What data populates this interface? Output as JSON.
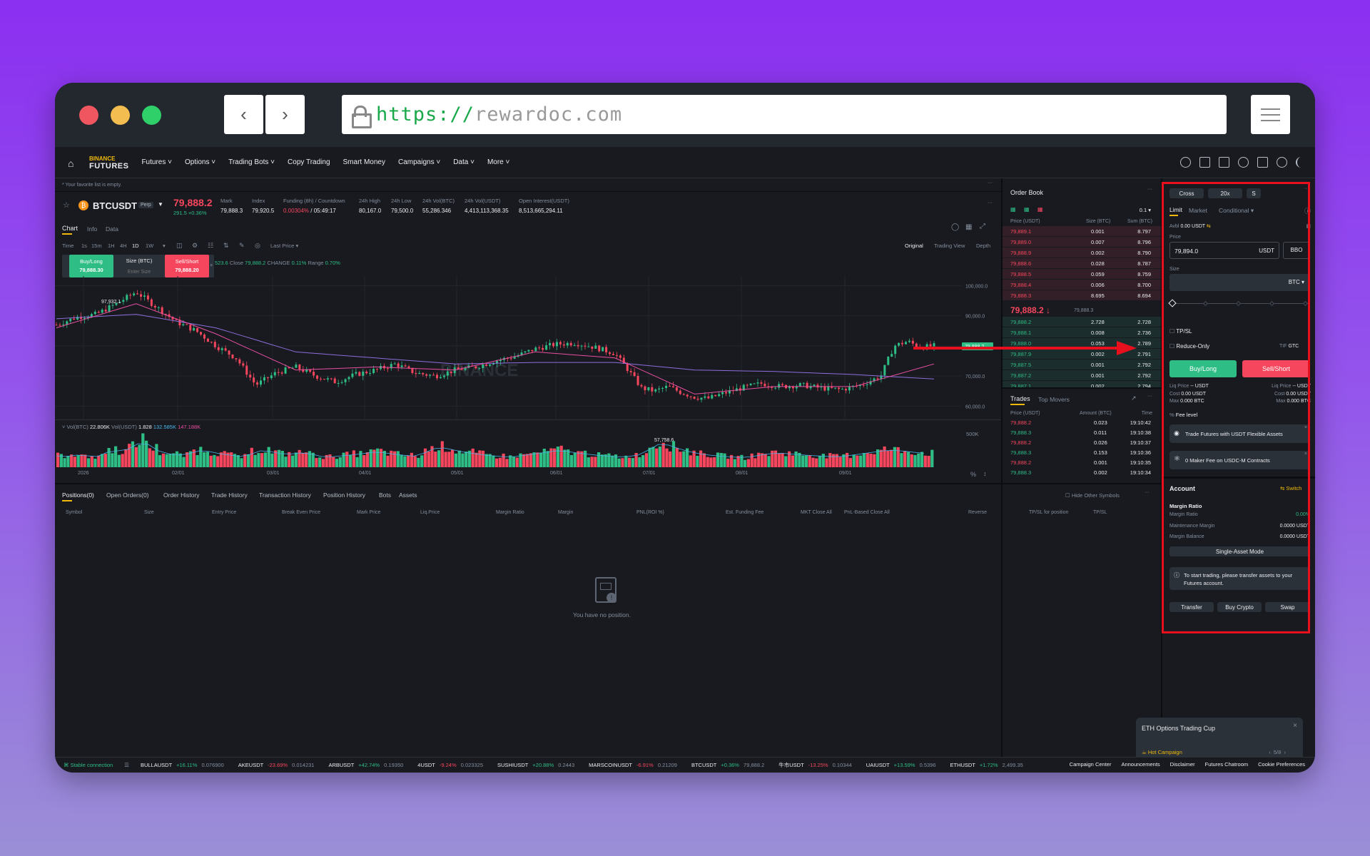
{
  "browser": {
    "url_scheme": "https://",
    "url_host": "rewardoc.com",
    "back_icon": "chevron-left-icon",
    "forward_icon": "chevron-right-icon",
    "menu_icon": "sliders-icon"
  },
  "nav": {
    "logo_top": "BINANCE",
    "logo_bottom": "FUTURES",
    "items": [
      "Futures",
      "Options",
      "Trading Bots",
      "Copy Trading",
      "Smart Money",
      "Campaigns",
      "Data",
      "More"
    ]
  },
  "favorites": {
    "empty_text": "* Your favorite list is empty."
  },
  "ticker_header": {
    "symbol": "BTCUSDT",
    "badge": "Perp",
    "price": "79,888.2",
    "change": "291.5 +0.36%",
    "stats": [
      {
        "label": "Mark",
        "value": "79,888.3"
      },
      {
        "label": "Index",
        "value": "79,920.5"
      },
      {
        "label": "Funding (8h) / Countdown",
        "value": "0.00304%",
        "value2": "/ 05:49:17"
      },
      {
        "label": "24h High",
        "value": "80,167.0"
      },
      {
        "label": "24h Low",
        "value": "79,500.0"
      },
      {
        "label": "24h Vol(BTC)",
        "value": "55,286.346"
      },
      {
        "label": "24h Vol(USDT)",
        "value": "4,413,113,368.35"
      },
      {
        "label": "Open Interest(USDT)",
        "value": "8,513,665,294.11"
      }
    ]
  },
  "chart_tabs": [
    "Chart",
    "Info",
    "Data"
  ],
  "chart_toolbar": {
    "intervals": [
      "Time",
      "1s",
      "15m",
      "1H",
      "4H",
      "1D",
      "1W"
    ],
    "active_interval": "1D",
    "last_price": "Last Price",
    "views": [
      "Original",
      "Trading View",
      "Depth"
    ]
  },
  "quick_trade": {
    "buy_label": "Buy/Long",
    "buy_price": "79,888.30",
    "size_label": "Size (BTC)",
    "size_placeholder": "Enter Size",
    "sell_label": "Sell/Short",
    "sell_price": "79,888.20"
  },
  "chart_info": {
    "ohlc_tail": "523.6",
    "close_label": "Close",
    "close_value": "79,888.2",
    "change_label": "CHANGE",
    "change_value": "0.11%",
    "range_label": "Range",
    "range_value": "0.70%",
    "watermark": "BINANCE",
    "high_marker": "97,932.1",
    "low_marker": "57,758.6",
    "last_price_tag": "79,888.2",
    "vol_label": "Vol(BTC)",
    "vol_btc": "22.806K",
    "vol_usdt_label": "Vol(USDT)",
    "vol_usdt": "1.828",
    "vol_ma1": "132.585K",
    "vol_ma2": "147.188K"
  },
  "chart_data": {
    "type": "line",
    "x_ticks": [
      "2026",
      "02/01",
      "03/01",
      "04/01",
      "05/01",
      "06/01",
      "07/01",
      "08/01",
      "09/01"
    ],
    "y_ticks": [
      100000,
      90000,
      80000,
      70000,
      60000
    ],
    "y_tick_labels": [
      "100,000.0",
      "90,000.0",
      "80,000.0",
      "70,000.0",
      "60,000.0"
    ],
    "ylim": [
      57000,
      102000
    ],
    "vol_axis_label": "500K",
    "price_series": [
      [
        0,
        87000
      ],
      [
        3,
        89500
      ],
      [
        6,
        90500
      ],
      [
        9,
        94000
      ],
      [
        12,
        97932
      ],
      [
        15,
        93000
      ],
      [
        18,
        88000
      ],
      [
        21,
        85000
      ],
      [
        24,
        80000
      ],
      [
        27,
        76000
      ],
      [
        30,
        67000
      ],
      [
        33,
        71000
      ],
      [
        36,
        73000
      ],
      [
        39,
        70000
      ],
      [
        42,
        68000
      ],
      [
        45,
        70500
      ],
      [
        48,
        72000
      ],
      [
        51,
        74000
      ],
      [
        54,
        71000
      ],
      [
        57,
        70000
      ],
      [
        60,
        72000
      ],
      [
        63,
        73000
      ],
      [
        66,
        75000
      ],
      [
        69,
        76500
      ],
      [
        72,
        79000
      ],
      [
        75,
        80500
      ],
      [
        78,
        81000
      ],
      [
        81,
        79500
      ],
      [
        84,
        77500
      ],
      [
        86,
        72000
      ],
      [
        88,
        66000
      ],
      [
        90,
        65000
      ],
      [
        92,
        66500
      ],
      [
        94,
        64500
      ],
      [
        96,
        63000
      ],
      [
        98,
        62500
      ],
      [
        100,
        64000
      ],
      [
        103,
        66000
      ],
      [
        106,
        67500
      ],
      [
        109,
        66500
      ],
      [
        112,
        67000
      ],
      [
        115,
        66000
      ],
      [
        118,
        65500
      ],
      [
        121,
        67000
      ],
      [
        124,
        70000
      ],
      [
        126,
        80000
      ],
      [
        128,
        81500
      ],
      [
        130,
        79500
      ],
      [
        132,
        80000
      ]
    ],
    "ma_series": [
      [
        0,
        89000
      ],
      [
        12,
        90500
      ],
      [
        24,
        86000
      ],
      [
        36,
        78000
      ],
      [
        48,
        76000
      ],
      [
        60,
        74000
      ],
      [
        72,
        74500
      ],
      [
        84,
        74500
      ],
      [
        96,
        72000
      ],
      [
        108,
        71500
      ],
      [
        120,
        70500
      ],
      [
        132,
        69000
      ]
    ],
    "ema_series": [
      [
        0,
        86000
      ],
      [
        12,
        94000
      ],
      [
        24,
        84000
      ],
      [
        36,
        72000
      ],
      [
        48,
        73000
      ],
      [
        60,
        72000
      ],
      [
        72,
        78000
      ],
      [
        84,
        76000
      ],
      [
        96,
        64000
      ],
      [
        108,
        66500
      ],
      [
        120,
        66500
      ],
      [
        132,
        74000
      ]
    ],
    "volume": [
      40,
      35,
      50,
      30,
      45,
      60,
      55,
      70,
      95,
      65,
      50,
      45,
      40,
      55,
      60,
      50,
      45,
      40,
      35,
      55,
      60,
      50,
      45,
      48,
      52,
      40,
      35,
      38,
      42,
      45,
      50,
      55,
      48,
      44,
      40,
      38,
      60,
      70,
      65,
      55,
      50,
      45,
      40,
      38,
      35,
      40,
      45,
      50,
      55,
      60,
      52,
      48,
      44,
      40,
      38,
      35,
      40,
      45,
      75,
      85,
      70,
      60,
      50,
      45,
      40,
      38,
      35,
      33,
      40,
      45,
      50,
      48,
      45,
      42,
      40,
      38,
      36,
      40,
      45,
      50,
      55,
      60,
      58,
      55,
      50,
      48
    ]
  },
  "order_book": {
    "title": "Order Book",
    "precision": "0.1",
    "headers": [
      "Price (USDT)",
      "Size (BTC)",
      "Sum (BTC)"
    ],
    "asks": [
      [
        "79,889.1",
        "0.001",
        "8.797"
      ],
      [
        "79,889.0",
        "0.007",
        "8.796"
      ],
      [
        "79,888.9",
        "0.002",
        "8.790"
      ],
      [
        "79,888.6",
        "0.028",
        "8.787"
      ],
      [
        "79,888.5",
        "0.059",
        "8.759"
      ],
      [
        "79,888.4",
        "0.006",
        "8.700"
      ],
      [
        "79,888.3",
        "8.695",
        "8.694"
      ]
    ],
    "mid_price": "79,888.2",
    "mid_mark": "79,888.3",
    "bids": [
      [
        "79,888.2",
        "2.728",
        "2.728"
      ],
      [
        "79,888.1",
        "0.008",
        "2.736"
      ],
      [
        "79,888.0",
        "0.053",
        "2.789"
      ],
      [
        "79,887.9",
        "0.002",
        "2.791"
      ],
      [
        "79,887.5",
        "0.001",
        "2.792"
      ],
      [
        "79,887.2",
        "0.001",
        "2.792"
      ],
      [
        "79,887.1",
        "0.002",
        "2.794"
      ]
    ]
  },
  "trades": {
    "tabs": [
      "Trades",
      "Top Movers"
    ],
    "headers": [
      "Price (USDT)",
      "Amount (BTC)",
      "Time"
    ],
    "rows": [
      [
        "79,888.2",
        "0.023",
        "19:10:42",
        "r"
      ],
      [
        "79,888.3",
        "0.011",
        "19:10:38",
        "g"
      ],
      [
        "79,888.2",
        "0.026",
        "19:10:37",
        "r"
      ],
      [
        "79,888.3",
        "0.153",
        "19:10:36",
        "g"
      ],
      [
        "79,888.2",
        "0.001",
        "19:10:35",
        "r"
      ],
      [
        "79,888.3",
        "0.002",
        "19:10:34",
        "g"
      ]
    ]
  },
  "positions": {
    "tabs": [
      "Positions(0)",
      "Open Orders(0)",
      "Order History",
      "Trade History",
      "Transaction History",
      "Position History",
      "Bots",
      "Assets"
    ],
    "hide_other": "Hide Other Symbols",
    "columns": [
      "Symbol",
      "Size",
      "Entry Price",
      "Break Even Price",
      "Mark Price",
      "Liq.Price",
      "Margin Ratio",
      "Margin",
      "PNL(ROI %)",
      "Est. Funding Fee",
      "MKT Close All",
      "PnL-Based Close All",
      "Reverse",
      "TP/SL for position",
      "TP/SL"
    ],
    "empty_text": "You have no position."
  },
  "order_form": {
    "margin_mode": "Cross",
    "leverage": "20x",
    "asset_mode": "S",
    "order_types": [
      "Limit",
      "Market",
      "Conditional"
    ],
    "avbl_label": "Avbl",
    "avbl_value": "0.00 USDT",
    "price_label": "Price",
    "price_value": "79,894.0",
    "price_unit": "USDT",
    "bbo": "BBO",
    "size_label": "Size",
    "size_unit": "BTC",
    "tpsl": "TP/SL",
    "reduce_only": "Reduce-Only",
    "tif_label": "TIF",
    "tif_value": "GTC",
    "buy_button": "Buy/Long",
    "sell_button": "Sell/Short",
    "buy_info": [
      [
        "Liq Price",
        "-- USDT"
      ],
      [
        "Cost",
        "0.00 USDT"
      ],
      [
        "Max",
        "0.000 BTC"
      ]
    ],
    "sell_info": [
      [
        "Liq Price",
        "-- USDT"
      ],
      [
        "Cost",
        "0.00 USDT"
      ],
      [
        "Max",
        "0.000 BTC"
      ]
    ],
    "fee_level": "Fee level",
    "promo1": "Trade Futures with USDT Flexible Assets",
    "promo2": "0 Maker Fee on USDC-M Contracts"
  },
  "account": {
    "title": "Account",
    "switch": "Switch",
    "margin_ratio_title": "Margin Ratio",
    "rows": [
      [
        "Margin Ratio",
        "0.00%"
      ],
      [
        "Maintenance Margin",
        "0.0000 USDT"
      ],
      [
        "Margin Balance",
        "0.0000 USDT"
      ]
    ],
    "single_asset": "Single-Asset Mode",
    "notice": "To start trading, please transfer assets to your Futures account.",
    "buttons": [
      "Transfer",
      "Buy Crypto",
      "Swap"
    ]
  },
  "popup": {
    "title": "ETH Options Trading Cup",
    "tag": "Hot Campaign",
    "pager": "5/8"
  },
  "ticker_bar": {
    "connection": "Stable connection",
    "items": [
      [
        "BULLAUSDT",
        "+16.11%",
        "0.076900",
        "g"
      ],
      [
        "AKEUSDT",
        "-23.69%",
        "0.014231",
        "r"
      ],
      [
        "ARBUSDT",
        "+42.74%",
        "0.19350",
        "g"
      ],
      [
        "4USDT",
        "-9.24%",
        "0.023325",
        "r"
      ],
      [
        "SUSHIUSDT",
        "+20.88%",
        "0.2443",
        "g"
      ],
      [
        "MARSCOINUSDT",
        "-6.91%",
        "0.21209",
        "r"
      ],
      [
        "BTCUSDT",
        "+0.36%",
        "79,888.2",
        "g"
      ],
      [
        "牛市USDT",
        "-13.25%",
        "0.10344",
        "r"
      ],
      [
        "UAIUSDT",
        "+13.59%",
        "0.5396",
        "g"
      ],
      [
        "ETHUSDT",
        "+1.72%",
        "2,499.35",
        "g"
      ]
    ],
    "links": [
      "Campaign Center",
      "Announcements",
      "Disclaimer",
      "Futures Chatroom",
      "Cookie Preferences"
    ]
  }
}
